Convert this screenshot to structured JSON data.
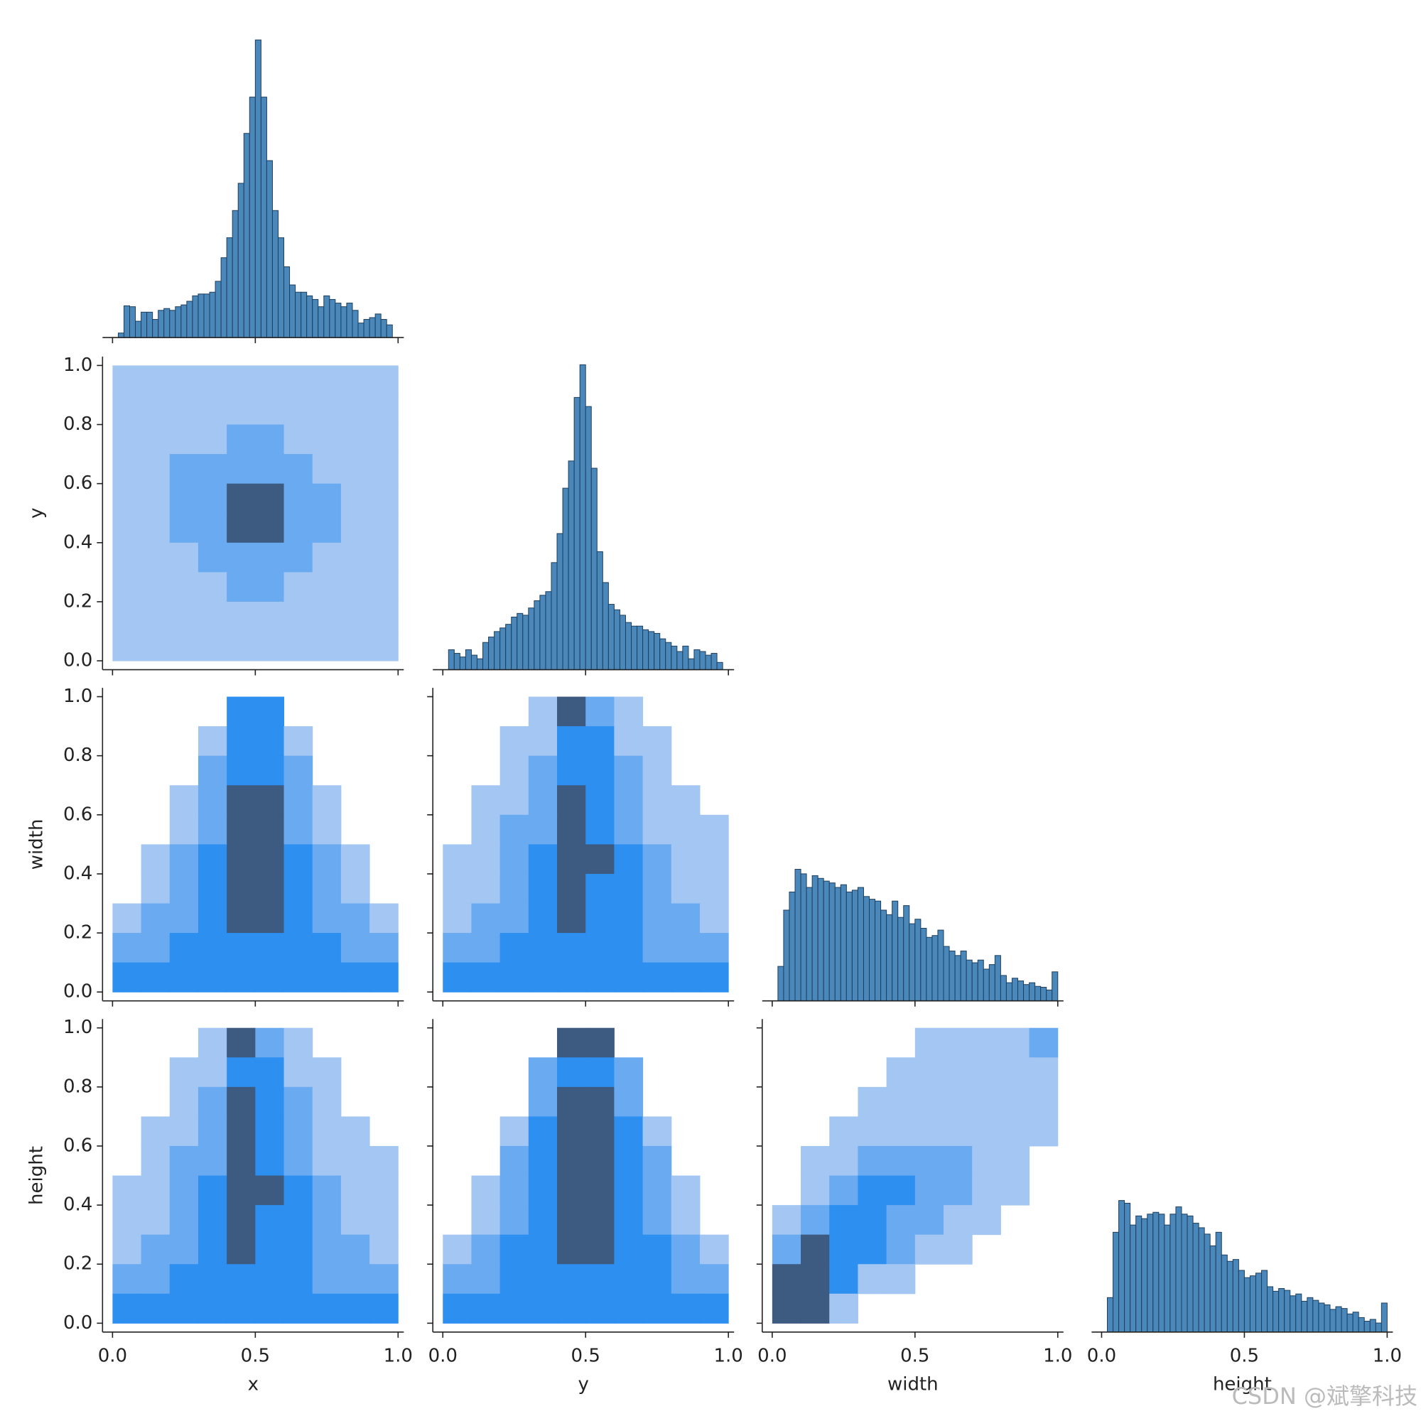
{
  "chart_data": {
    "type": "pairplot",
    "variables": [
      "x",
      "y",
      "width",
      "height"
    ],
    "xlim": [
      -0.035,
      1.02
    ],
    "ylim": [
      -0.03,
      1.03
    ],
    "xticks": [
      {
        "value": 0,
        "label": "0.0"
      },
      {
        "value": 0.5,
        "label": "0.5"
      },
      {
        "value": 1,
        "label": "1.0"
      }
    ],
    "yticks": [
      {
        "value": 0,
        "label": "0.0"
      },
      {
        "value": 0.2,
        "label": "0.2"
      },
      {
        "value": 0.4,
        "label": "0.4"
      },
      {
        "value": 0.6,
        "label": "0.6"
      },
      {
        "value": 0.8,
        "label": "0.8"
      },
      {
        "value": 1,
        "label": "1.0"
      }
    ],
    "hist_ylim": [
      0,
      345
    ],
    "hist_color": "#4a87ba",
    "hist_edge": "#1f3f5c",
    "palette": [
      "#a3c6f2",
      "#6aaaf0",
      "#2d8ff0",
      "#3d5a80"
    ],
    "diagonal": [
      {
        "bins": [
          0.02,
          0.04,
          0.06,
          0.08,
          0.1,
          0.12,
          0.14,
          0.16,
          0.18,
          0.2,
          0.22,
          0.24,
          0.26,
          0.28,
          0.3,
          0.32,
          0.34,
          0.36,
          0.38,
          0.4,
          0.42,
          0.44,
          0.46,
          0.48,
          0.5,
          0.52,
          0.54,
          0.56,
          0.58,
          0.6,
          0.62,
          0.64,
          0.66,
          0.68,
          0.7,
          0.72,
          0.74,
          0.76,
          0.78,
          0.8,
          0.82,
          0.84,
          0.86,
          0.88,
          0.9,
          0.92,
          0.94,
          0.96,
          0.98
        ],
        "counts": [
          5,
          35,
          34,
          18,
          28,
          28,
          20,
          30,
          32,
          30,
          34,
          36,
          40,
          46,
          48,
          48,
          50,
          62,
          88,
          110,
          140,
          170,
          225,
          265,
          328,
          265,
          195,
          140,
          110,
          78,
          58,
          50,
          50,
          46,
          42,
          34,
          46,
          42,
          38,
          34,
          38,
          30,
          16,
          20,
          22,
          26,
          20,
          14
        ]
      },
      {
        "bins": [
          0.02,
          0.04,
          0.06,
          0.08,
          0.1,
          0.12,
          0.14,
          0.16,
          0.18,
          0.2,
          0.22,
          0.24,
          0.26,
          0.28,
          0.3,
          0.32,
          0.34,
          0.36,
          0.38,
          0.4,
          0.42,
          0.44,
          0.46,
          0.48,
          0.5,
          0.52,
          0.54,
          0.56,
          0.58,
          0.6,
          0.62,
          0.64,
          0.66,
          0.68,
          0.7,
          0.72,
          0.74,
          0.76,
          0.78,
          0.8,
          0.82,
          0.84,
          0.86,
          0.88,
          0.9,
          0.92,
          0.94,
          0.96,
          0.98
        ],
        "counts": [
          22,
          18,
          14,
          22,
          16,
          12,
          30,
          36,
          42,
          46,
          50,
          58,
          62,
          60,
          68,
          76,
          82,
          86,
          118,
          150,
          200,
          230,
          300,
          336,
          290,
          222,
          130,
          96,
          72,
          66,
          60,
          52,
          48,
          48,
          44,
          42,
          40,
          34,
          30,
          26,
          20,
          26,
          12,
          22,
          20,
          16,
          18,
          8
        ]
      },
      {
        "bins": [
          0.02,
          0.04,
          0.06,
          0.08,
          0.1,
          0.12,
          0.14,
          0.16,
          0.18,
          0.2,
          0.22,
          0.24,
          0.26,
          0.28,
          0.3,
          0.32,
          0.34,
          0.36,
          0.38,
          0.4,
          0.42,
          0.44,
          0.46,
          0.48,
          0.5,
          0.52,
          0.54,
          0.56,
          0.58,
          0.6,
          0.62,
          0.64,
          0.66,
          0.68,
          0.7,
          0.72,
          0.74,
          0.76,
          0.78,
          0.8,
          0.82,
          0.84,
          0.86,
          0.88,
          0.9,
          0.92,
          0.94,
          0.96,
          0.98,
          1.0
        ],
        "counts": [
          38,
          100,
          120,
          145,
          140,
          125,
          138,
          135,
          132,
          130,
          125,
          128,
          120,
          122,
          125,
          115,
          112,
          110,
          100,
          95,
          110,
          92,
          105,
          85,
          90,
          80,
          70,
          72,
          78,
          60,
          55,
          50,
          55,
          45,
          42,
          45,
          35,
          40,
          50,
          28,
          20,
          25,
          22,
          18,
          20,
          16,
          15,
          12,
          32
        ]
      },
      {
        "bins": [
          0.02,
          0.04,
          0.06,
          0.08,
          0.1,
          0.12,
          0.14,
          0.16,
          0.18,
          0.2,
          0.22,
          0.24,
          0.26,
          0.28,
          0.3,
          0.32,
          0.34,
          0.36,
          0.38,
          0.4,
          0.42,
          0.44,
          0.46,
          0.48,
          0.5,
          0.52,
          0.54,
          0.56,
          0.58,
          0.6,
          0.62,
          0.64,
          0.66,
          0.68,
          0.7,
          0.72,
          0.74,
          0.76,
          0.78,
          0.8,
          0.82,
          0.84,
          0.86,
          0.88,
          0.9,
          0.92,
          0.94,
          0.96,
          0.98,
          1.0
        ],
        "counts": [
          38,
          110,
          145,
          142,
          118,
          128,
          125,
          130,
          132,
          130,
          118,
          130,
          138,
          130,
          128,
          120,
          115,
          108,
          95,
          110,
          85,
          78,
          80,
          68,
          60,
          62,
          65,
          68,
          50,
          45,
          48,
          46,
          40,
          42,
          34,
          38,
          35,
          32,
          30,
          25,
          28,
          26,
          20,
          22,
          16,
          12,
          14,
          10,
          32
        ]
      }
    ],
    "lower": [
      {
        "counts": [
          [
            1,
            1,
            1,
            1,
            1,
            1,
            1,
            1,
            1,
            1
          ],
          [
            1,
            1,
            1,
            1,
            1,
            1,
            1,
            1,
            1,
            1
          ],
          [
            1,
            1,
            1,
            1,
            2,
            2,
            1,
            1,
            1,
            1
          ],
          [
            1,
            1,
            2,
            2,
            2,
            2,
            2,
            1,
            1,
            1
          ],
          [
            1,
            1,
            2,
            2,
            4,
            4,
            2,
            2,
            1,
            1
          ],
          [
            1,
            1,
            2,
            2,
            4,
            4,
            2,
            2,
            1,
            1
          ],
          [
            1,
            1,
            1,
            2,
            2,
            2,
            2,
            1,
            1,
            1
          ],
          [
            1,
            1,
            1,
            1,
            2,
            2,
            1,
            1,
            1,
            1
          ],
          [
            1,
            1,
            1,
            1,
            1,
            1,
            1,
            1,
            1,
            1
          ],
          [
            1,
            1,
            1,
            1,
            1,
            1,
            1,
            1,
            1,
            1
          ]
        ]
      },
      {
        "counts": [
          [
            0,
            0,
            0,
            0,
            3,
            3,
            0,
            0,
            0,
            0
          ],
          [
            0,
            0,
            0,
            1,
            3,
            3,
            1,
            0,
            0,
            0
          ],
          [
            0,
            0,
            0,
            2,
            3,
            3,
            2,
            0,
            0,
            0
          ],
          [
            0,
            0,
            1,
            2,
            4,
            4,
            2,
            1,
            0,
            0
          ],
          [
            0,
            0,
            1,
            2,
            4,
            4,
            2,
            1,
            0,
            0
          ],
          [
            0,
            1,
            2,
            3,
            4,
            4,
            3,
            2,
            1,
            0
          ],
          [
            0,
            1,
            2,
            3,
            4,
            4,
            3,
            2,
            1,
            0
          ],
          [
            1,
            2,
            2,
            3,
            4,
            4,
            3,
            2,
            2,
            1
          ],
          [
            2,
            2,
            3,
            3,
            3,
            3,
            3,
            3,
            2,
            2
          ],
          [
            3,
            3,
            3,
            3,
            3,
            3,
            3,
            3,
            3,
            3
          ]
        ]
      },
      {
        "counts": [
          [
            0,
            0,
            0,
            1,
            4,
            2,
            1,
            0,
            0,
            0
          ],
          [
            0,
            0,
            1,
            1,
            3,
            3,
            1,
            1,
            0,
            0
          ],
          [
            0,
            0,
            1,
            2,
            3,
            3,
            2,
            1,
            0,
            0
          ],
          [
            0,
            1,
            1,
            2,
            4,
            3,
            2,
            1,
            1,
            0
          ],
          [
            0,
            1,
            2,
            2,
            4,
            3,
            2,
            1,
            1,
            1
          ],
          [
            1,
            1,
            2,
            3,
            4,
            4,
            3,
            2,
            1,
            1
          ],
          [
            1,
            1,
            2,
            3,
            4,
            3,
            3,
            2,
            1,
            1
          ],
          [
            1,
            2,
            2,
            3,
            4,
            3,
            3,
            2,
            2,
            1
          ],
          [
            2,
            2,
            3,
            3,
            3,
            3,
            3,
            2,
            2,
            2
          ],
          [
            3,
            3,
            3,
            3,
            3,
            3,
            3,
            3,
            3,
            3
          ]
        ]
      },
      {
        "counts": [
          [
            0,
            0,
            0,
            1,
            4,
            2,
            1,
            0,
            0,
            0
          ],
          [
            0,
            0,
            1,
            1,
            3,
            3,
            1,
            1,
            0,
            0
          ],
          [
            0,
            0,
            1,
            2,
            4,
            3,
            2,
            1,
            0,
            0
          ],
          [
            0,
            1,
            1,
            2,
            4,
            3,
            2,
            1,
            1,
            0
          ],
          [
            0,
            1,
            2,
            2,
            4,
            3,
            2,
            1,
            1,
            1
          ],
          [
            1,
            1,
            2,
            3,
            4,
            4,
            3,
            2,
            1,
            1
          ],
          [
            1,
            1,
            2,
            3,
            4,
            3,
            3,
            2,
            1,
            1
          ],
          [
            1,
            2,
            2,
            3,
            4,
            3,
            3,
            2,
            2,
            1
          ],
          [
            2,
            2,
            3,
            3,
            3,
            3,
            3,
            2,
            2,
            2
          ],
          [
            3,
            3,
            3,
            3,
            3,
            3,
            3,
            3,
            3,
            3
          ]
        ]
      },
      {
        "counts": [
          [
            0,
            0,
            0,
            0,
            4,
            4,
            0,
            0,
            0,
            0
          ],
          [
            0,
            0,
            0,
            2,
            3,
            3,
            2,
            0,
            0,
            0
          ],
          [
            0,
            0,
            0,
            2,
            4,
            4,
            2,
            0,
            0,
            0
          ],
          [
            0,
            0,
            1,
            3,
            4,
            4,
            3,
            1,
            0,
            0
          ],
          [
            0,
            0,
            2,
            3,
            4,
            4,
            3,
            2,
            0,
            0
          ],
          [
            0,
            1,
            2,
            3,
            4,
            4,
            3,
            2,
            1,
            0
          ],
          [
            0,
            1,
            2,
            3,
            4,
            4,
            3,
            2,
            1,
            0
          ],
          [
            1,
            2,
            3,
            3,
            4,
            4,
            3,
            3,
            2,
            1
          ],
          [
            2,
            2,
            3,
            3,
            3,
            3,
            3,
            3,
            2,
            2
          ],
          [
            3,
            3,
            3,
            3,
            3,
            3,
            3,
            3,
            3,
            3
          ]
        ]
      },
      {
        "counts": [
          [
            0,
            0,
            0,
            0,
            0,
            1,
            1,
            1,
            1,
            2
          ],
          [
            0,
            0,
            0,
            0,
            1,
            1,
            1,
            1,
            1,
            1
          ],
          [
            0,
            0,
            0,
            1,
            1,
            1,
            1,
            1,
            1,
            1
          ],
          [
            0,
            0,
            1,
            1,
            1,
            1,
            1,
            1,
            1,
            1
          ],
          [
            0,
            1,
            1,
            2,
            2,
            2,
            2,
            1,
            1,
            0
          ],
          [
            0,
            1,
            2,
            3,
            3,
            2,
            2,
            1,
            1,
            0
          ],
          [
            1,
            2,
            3,
            3,
            2,
            2,
            1,
            1,
            0,
            0
          ],
          [
            2,
            4,
            3,
            3,
            2,
            1,
            1,
            0,
            0,
            0
          ],
          [
            4,
            4,
            3,
            1,
            1,
            0,
            0,
            0,
            0,
            0
          ],
          [
            4,
            4,
            1,
            0,
            0,
            0,
            0,
            0,
            0,
            0
          ]
        ]
      }
    ],
    "watermark": "CSDN @斌擎科技"
  }
}
